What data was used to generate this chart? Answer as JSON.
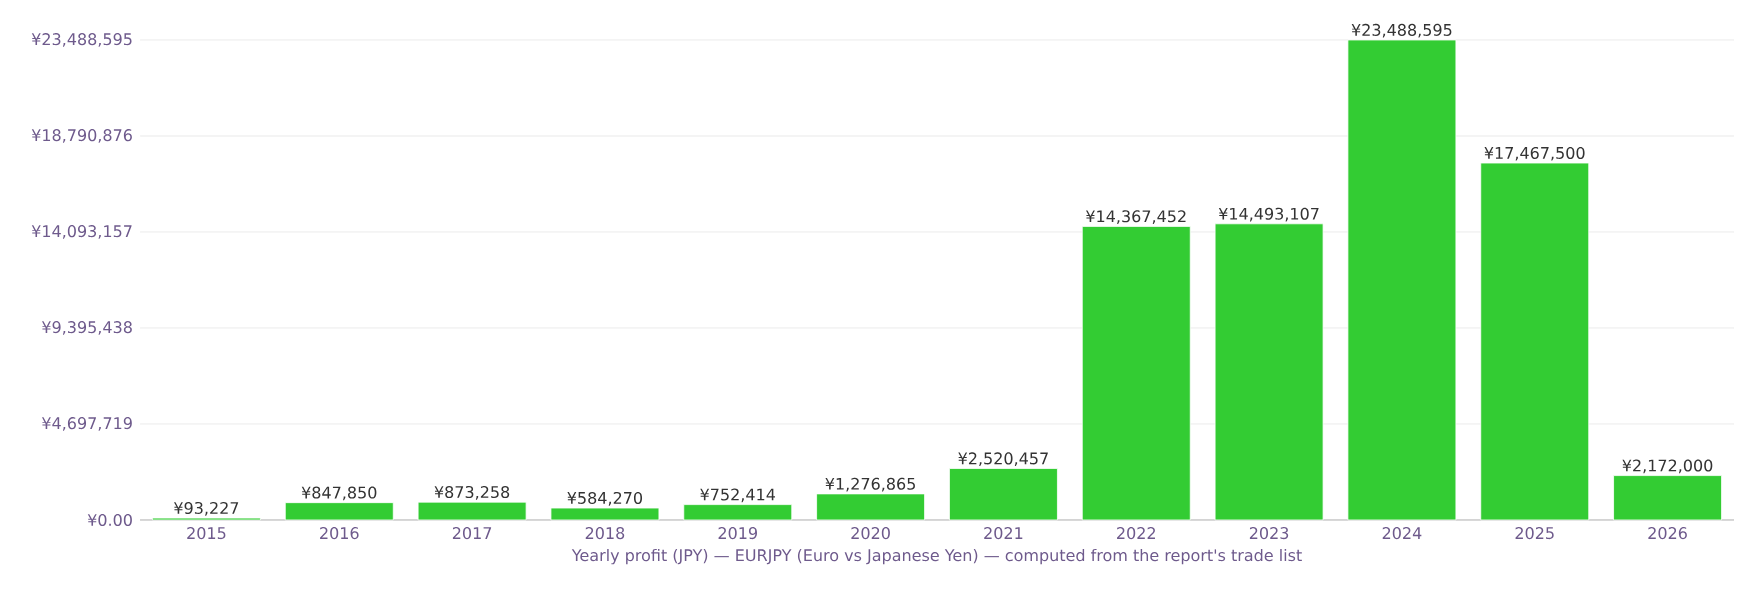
{
  "chart_data": {
    "type": "bar",
    "xlabel": "Yearly profit (JPY) — EURJPY (Euro vs Japanese Yen) — computed from the report's trade list",
    "categories": [
      "2015",
      "2016",
      "2017",
      "2018",
      "2019",
      "2020",
      "2021",
      "2022",
      "2023",
      "2024",
      "2025",
      "2026"
    ],
    "values": [
      93227,
      847850,
      873258,
      584270,
      752414,
      1276865,
      2520457,
      14367452,
      14493107,
      23488595,
      17467500,
      2172000
    ],
    "value_labels": [
      "¥93,227",
      "¥847,850",
      "¥873,258",
      "¥584,270",
      "¥752,414",
      "¥1,276,865",
      "¥2,520,457",
      "¥14,367,452",
      "¥14,493,107",
      "¥23,488,595",
      "¥17,467,500",
      "¥2,172,000"
    ],
    "color": "#33cc33",
    "ylim": [
      0,
      23488595
    ],
    "yticks": [
      {
        "value": 0,
        "label": "¥0.00"
      },
      {
        "value": 4697719,
        "label": "¥4,697,719"
      },
      {
        "value": 9395438,
        "label": "¥9,395,438"
      },
      {
        "value": 14093157,
        "label": "¥14,093,157"
      },
      {
        "value": 18790876,
        "label": "¥18,790,876"
      },
      {
        "value": 23488595,
        "label": "¥23,488,595"
      }
    ],
    "grid": "y"
  }
}
